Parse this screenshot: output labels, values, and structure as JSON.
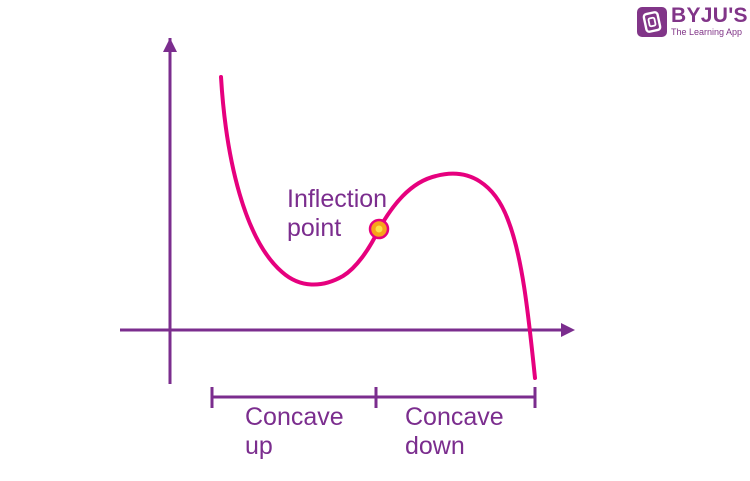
{
  "colors": {
    "axis": "#7b2d8e",
    "curve": "#e6007e",
    "point_fill": "#f7a21b",
    "point_ring": "#e6007e",
    "text": "#7b2d8e",
    "brand": "#813588"
  },
  "labels": {
    "inflection": "Inflection\npoint",
    "concave_up": "Concave\nup",
    "concave_down": "Concave\ndown"
  },
  "logo": {
    "name": "BYJU'S",
    "tagline": "The Learning App"
  }
}
